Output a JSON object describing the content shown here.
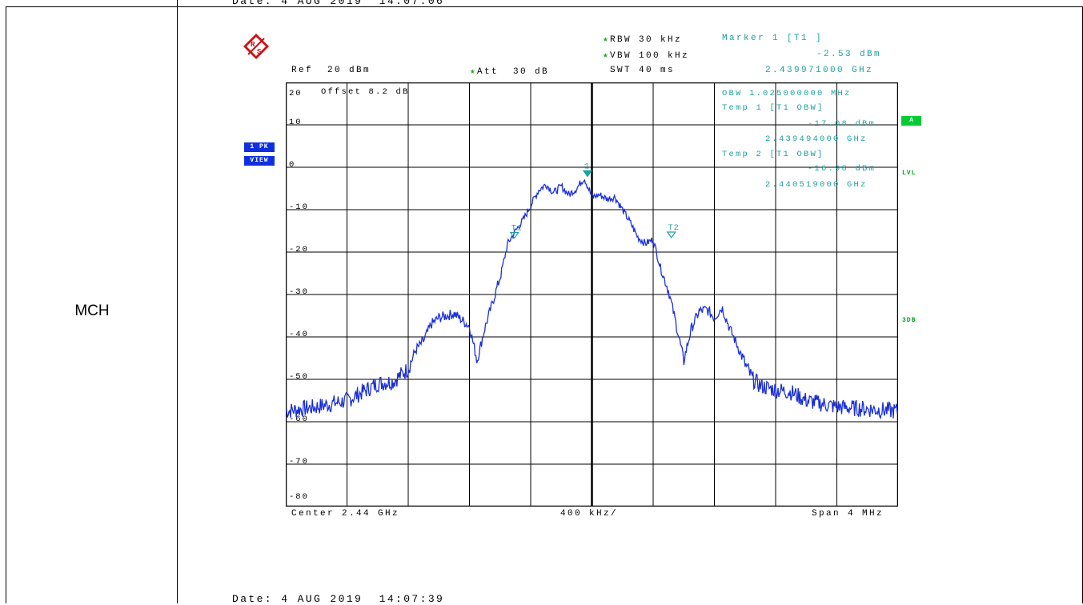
{
  "row_label": "MCH",
  "header": {
    "date_top": "Date: 4 AUG 2019  14:07:06",
    "date_bottom": "Date: 4 AUG 2019  14:07:39"
  },
  "analyzer": {
    "ref": "Ref  20 dBm",
    "att": "Att  30 dB",
    "rbw": "RBW 30 kHz",
    "vbw": "VBW 100 kHz",
    "swt": "SWT 40 ms",
    "offset": "Offset  8.2 dB",
    "trace_badge_1": "1 PK",
    "trace_badge_2": "VIEW",
    "side_a": "A",
    "side_lvl": "LVL",
    "side_3db": "3DB",
    "center": "Center 2.44 GHz",
    "span_div": "400 kHz/",
    "span": "Span 4 MHz"
  },
  "marker_info": {
    "m1_title": "Marker 1 [T1 ]",
    "m1_level": "-2.53 dBm",
    "m1_freq": "2.439971000 GHz",
    "obw": "OBW  1.025000000 MHz",
    "t1_title": "Temp 1 [T1 OBW]",
    "t1_level": "-17.08 dBm",
    "t1_freq": "2.439494000 GHz",
    "t2_title": "Temp 2 [T1 OBW]",
    "t2_level": "-16.98 dBm",
    "t2_freq": "2.440519000 GHz"
  },
  "colors": {
    "trace": "#1a2fd6",
    "marker": "#1fa0a0",
    "badge": "#1030e0",
    "green": "#00cc33"
  },
  "chart_data": {
    "type": "line",
    "title": "",
    "xlabel": "",
    "ylabel": "",
    "x_unit": "GHz",
    "y_unit": "dBm",
    "xlim": [
      2.438,
      2.442
    ],
    "ylim": [
      -80,
      20
    ],
    "y_ticks": [
      20,
      10,
      0,
      -10,
      -20,
      -30,
      -40,
      -50,
      -60,
      -70,
      -80
    ],
    "grid": true,
    "series": [
      {
        "x": [
          2.438,
          2.4382,
          2.4384,
          2.4386,
          2.4387,
          2.4388,
          2.43885,
          2.4389,
          2.43895,
          2.439,
          2.43905,
          2.4391,
          2.4392,
          2.43925,
          2.4393,
          2.43935,
          2.4394,
          2.43945,
          2.4395,
          2.43955,
          2.4396,
          2.43965,
          2.4397,
          2.43975,
          2.4398,
          2.43985,
          2.4399,
          2.43995,
          2.44,
          2.44005,
          2.4401,
          2.44015,
          2.4402,
          2.44025,
          2.4403,
          2.44035,
          2.4404,
          2.44045,
          2.4405,
          2.44055,
          2.4406,
          2.44065,
          2.4407,
          2.44075,
          2.4408,
          2.44085,
          2.4409,
          2.44095,
          2.441,
          2.44105,
          2.4411,
          2.4412,
          2.4413,
          2.4414,
          2.4416,
          2.4418,
          2.442
        ],
        "y": [
          -57.5,
          -56.5,
          -55,
          -51,
          -50.5,
          -47.5,
          -43,
          -41,
          -37,
          -35.5,
          -35,
          -34.5,
          -37.5,
          -45.5,
          -38,
          -32,
          -26,
          -18,
          -15,
          -12.5,
          -9,
          -5.5,
          -4,
          -6,
          -4.5,
          -6.5,
          -5,
          -2.5,
          -7,
          -6.5,
          -7.5,
          -7,
          -10,
          -13,
          -16.5,
          -18,
          -17,
          -24,
          -29,
          -37,
          -45.5,
          -38,
          -34,
          -33.5,
          -35.5,
          -33,
          -38,
          -42,
          -46.5,
          -50,
          -51.5,
          -52.5,
          -53,
          -55,
          -56.5,
          -57,
          -57.5
        ]
      }
    ],
    "markers": [
      {
        "label": "1",
        "x": 2.439971,
        "y": -2.53
      },
      {
        "label": "T1",
        "x": 2.439494,
        "y": -17.08
      },
      {
        "label": "T2",
        "x": 2.440519,
        "y": -16.98
      }
    ]
  }
}
